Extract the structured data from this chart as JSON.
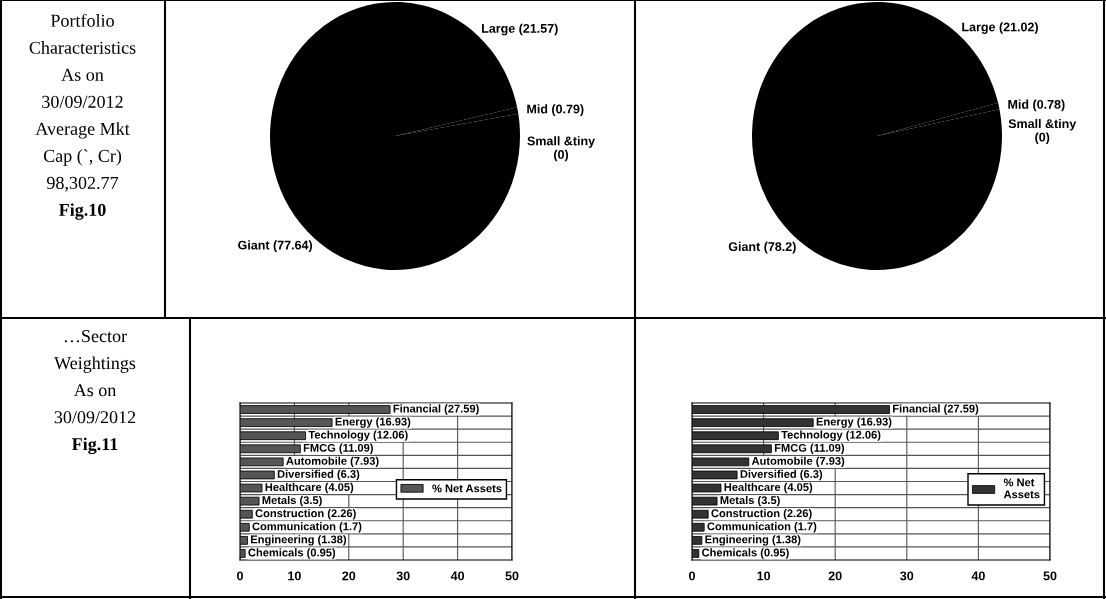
{
  "chart_data": [
    {
      "type": "other",
      "annotations": [
        "Portfolio",
        "Characteristics",
        "As on",
        "30/09/2012",
        "Average Mkt",
        "Cap (`, Cr)",
        "98,302.77"
      ],
      "subtitle": "Fig.10"
    },
    {
      "type": "pie",
      "categories": [
        null,
        null,
        null,
        null
      ],
      "values": [
        21.57,
        0.79,
        0,
        77.64
      ],
      "colors": [
        "#000000",
        "#000000",
        "#000000",
        "#000000"
      ],
      "value_labels": [
        "Large (21.57)",
        "Mid (0.79)",
        "Small &tiny\n(0)",
        "Giant (77.64)"
      ]
    },
    {
      "type": "pie",
      "categories": [
        null,
        null,
        null,
        null
      ],
      "values": [
        21.02,
        0.78,
        0,
        78.2
      ],
      "colors": [
        "#000000",
        "#000000",
        "#000000",
        "#000000"
      ],
      "value_labels": [
        "Large (21.02)",
        "Mid (0.78)",
        "Small &tiny\n(0)",
        "Giant (78.2)"
      ]
    },
    {
      "type": "other",
      "annotations": [
        "…Sector",
        "Weightings",
        "As on",
        "30/09/2012"
      ],
      "subtitle": "Fig.11"
    },
    {
      "type": "bar",
      "orientation": "horizontal",
      "categories": [
        null,
        null,
        null,
        null,
        null,
        null,
        null,
        null,
        null,
        null,
        null,
        null
      ],
      "series": [
        {
          "name": "% Net Assets",
          "color": "#555555",
          "values": [
            27.59,
            16.93,
            12.06,
            11.09,
            7.93,
            6.3,
            4.05,
            3.5,
            2.26,
            1.7,
            1.38,
            0.95
          ],
          "value_labels": [
            "Financial (27.59)",
            "Energy (16.93)",
            "Technology (12.06)",
            "FMCG (11.09)",
            "Automobile (7.93)",
            "Diversified (6.3)",
            "Healthcare (4.05)",
            "Metals (3.5)",
            "Construction (2.26)",
            "Communication (1.7)",
            "Engineering (1.38)",
            "Chemicals (0.95)"
          ]
        }
      ],
      "xlim": [
        0,
        50
      ],
      "xticks": [
        0,
        10,
        20,
        30,
        40,
        50
      ],
      "grid": true,
      "legend": "right",
      "tick_labels": "x"
    },
    {
      "type": "bar",
      "orientation": "horizontal",
      "categories": [
        null,
        null,
        null,
        null,
        null,
        null,
        null,
        null,
        null,
        null,
        null,
        null
      ],
      "series": [
        {
          "name": "% Net\nAssets",
          "color": "#333333",
          "values": [
            27.59,
            16.93,
            12.06,
            11.09,
            7.93,
            6.3,
            4.05,
            3.5,
            2.26,
            1.7,
            1.38,
            0.95
          ],
          "value_labels": [
            "Financial (27.59)",
            "Energy (16.93)",
            "Technology (12.06)",
            "FMCG (11.09)",
            "Automobile (7.93)",
            "Diversified (6.3)",
            "Healthcare (4.05)",
            "Metals (3.5)",
            "Construction (2.26)",
            "Communication (1.7)",
            "Engineering (1.38)",
            "Chemicals (0.95)"
          ]
        }
      ],
      "xlim": [
        0,
        50
      ],
      "xticks": [
        0,
        10,
        20,
        30,
        40,
        50
      ],
      "grid": true,
      "legend": "right",
      "tick_labels": "x"
    }
  ]
}
